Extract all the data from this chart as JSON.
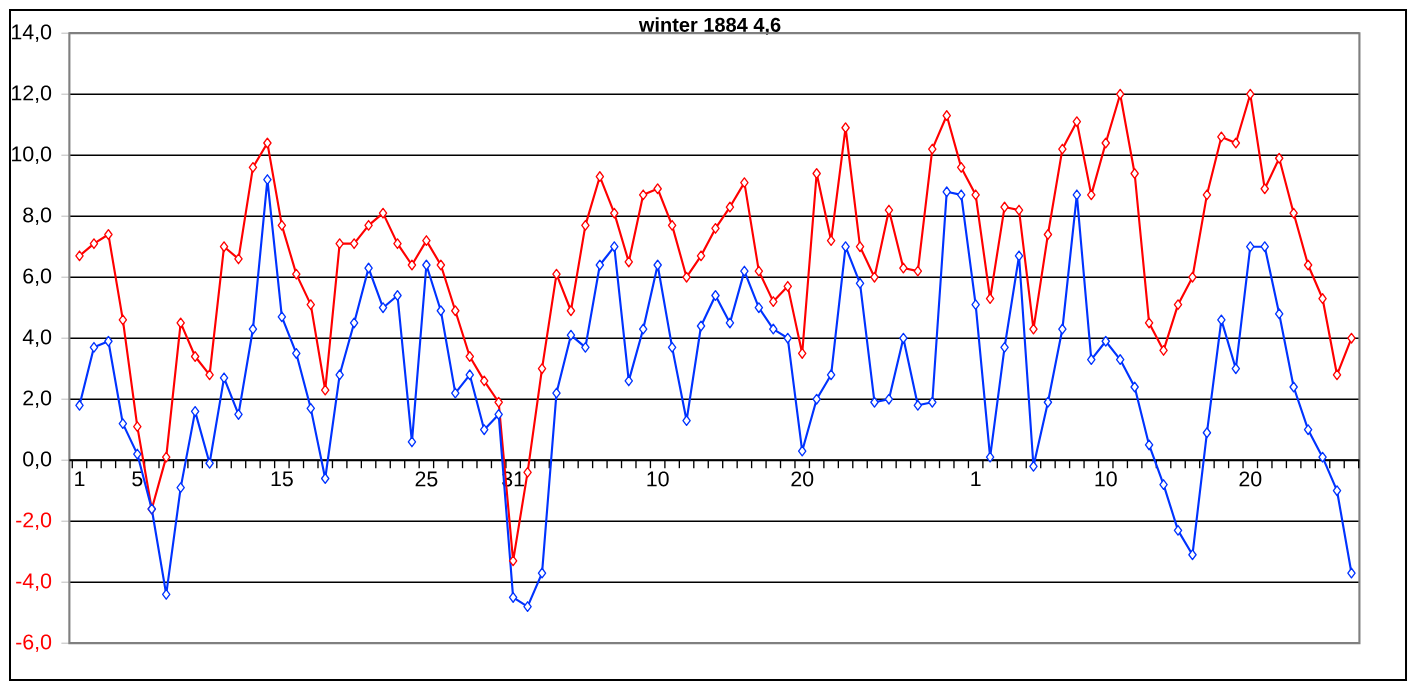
{
  "chart_data": {
    "type": "line",
    "title": "winter 1884 4,6",
    "categories": [
      "1",
      null,
      null,
      null,
      "5",
      null,
      null,
      null,
      null,
      null,
      null,
      null,
      null,
      null,
      "15",
      null,
      null,
      null,
      null,
      null,
      null,
      null,
      null,
      null,
      "25",
      null,
      null,
      null,
      null,
      null,
      "31",
      null,
      null,
      null,
      null,
      null,
      null,
      null,
      null,
      null,
      "10",
      null,
      null,
      null,
      null,
      null,
      null,
      null,
      null,
      null,
      "20",
      null,
      null,
      null,
      null,
      null,
      null,
      null,
      null,
      null,
      null,
      null,
      "1",
      null,
      null,
      null,
      null,
      null,
      null,
      null,
      null,
      "10",
      null,
      null,
      null,
      null,
      null,
      null,
      null,
      null,
      null,
      "20",
      null,
      null,
      null,
      null,
      null,
      null,
      null
    ],
    "series": [
      {
        "color": "#ff0000",
        "values": [
          6.7,
          7.1,
          7.4,
          4.6,
          1.1,
          -1.6,
          0.1,
          4.5,
          3.4,
          2.8,
          7.0,
          6.6,
          9.6,
          10.4,
          7.7,
          6.1,
          5.1,
          2.3,
          7.1,
          7.1,
          7.7,
          8.1,
          7.1,
          6.4,
          7.2,
          6.4,
          4.9,
          3.4,
          2.6,
          1.9,
          -3.3,
          -0.4,
          3.0,
          6.1,
          4.9,
          7.7,
          9.3,
          8.1,
          6.5,
          8.7,
          8.9,
          7.7,
          6.0,
          6.7,
          7.6,
          8.3,
          9.1,
          6.2,
          5.2,
          5.7,
          3.5,
          9.4,
          7.2,
          10.9,
          7.0,
          6.0,
          8.2,
          6.3,
          6.2,
          10.2,
          11.3,
          9.6,
          8.7,
          5.3,
          8.3,
          8.2,
          4.3,
          7.4,
          10.2,
          11.1,
          8.7,
          10.4,
          12.0,
          9.4,
          4.5,
          3.6,
          5.1,
          6.0,
          8.7,
          10.6,
          10.4,
          12.0,
          8.9,
          9.9,
          8.1,
          6.4,
          5.3,
          2.8,
          4.0
        ]
      },
      {
        "color": "#0033ff",
        "values": [
          1.8,
          3.7,
          3.9,
          1.2,
          0.2,
          -1.6,
          -4.4,
          -0.9,
          1.6,
          -0.1,
          2.7,
          1.5,
          4.3,
          9.2,
          4.7,
          3.5,
          1.7,
          -0.6,
          2.8,
          4.5,
          6.3,
          5.0,
          5.4,
          0.6,
          6.4,
          4.9,
          2.2,
          2.8,
          1.0,
          1.5,
          -4.5,
          -4.8,
          -3.7,
          2.2,
          4.1,
          3.7,
          6.4,
          7.0,
          2.6,
          4.3,
          6.4,
          3.7,
          1.3,
          4.4,
          5.4,
          4.5,
          6.2,
          5.0,
          4.3,
          4.0,
          0.3,
          2.0,
          2.8,
          7.0,
          5.8,
          1.9,
          2.0,
          4.0,
          1.8,
          1.9,
          8.8,
          8.7,
          5.1,
          0.1,
          3.7,
          6.7,
          -0.2,
          1.9,
          4.3,
          8.7,
          3.3,
          3.9,
          3.3,
          2.4,
          0.5,
          -0.8,
          -2.3,
          -3.1,
          0.9,
          4.6,
          3.0,
          7.0,
          7.0,
          4.8,
          2.4,
          1.0,
          0.1,
          -1.0,
          -3.7
        ]
      }
    ],
    "ylim": [
      -6,
      14
    ],
    "yticks": [
      {
        "value": -6,
        "label": "-6,0"
      },
      {
        "value": -4,
        "label": "-4,0"
      },
      {
        "value": -2,
        "label": "-2,0"
      },
      {
        "value": 0,
        "label": "0,0"
      },
      {
        "value": 2,
        "label": "2,0"
      },
      {
        "value": 4,
        "label": "4,0"
      },
      {
        "value": 6,
        "label": "6,0"
      },
      {
        "value": 8,
        "label": "8,0"
      },
      {
        "value": 10,
        "label": "10,0"
      },
      {
        "value": 12,
        "label": "12,0"
      },
      {
        "value": 14,
        "label": "14,0"
      }
    ],
    "grid": "y",
    "marker": "diamond",
    "line_style": "solid"
  }
}
